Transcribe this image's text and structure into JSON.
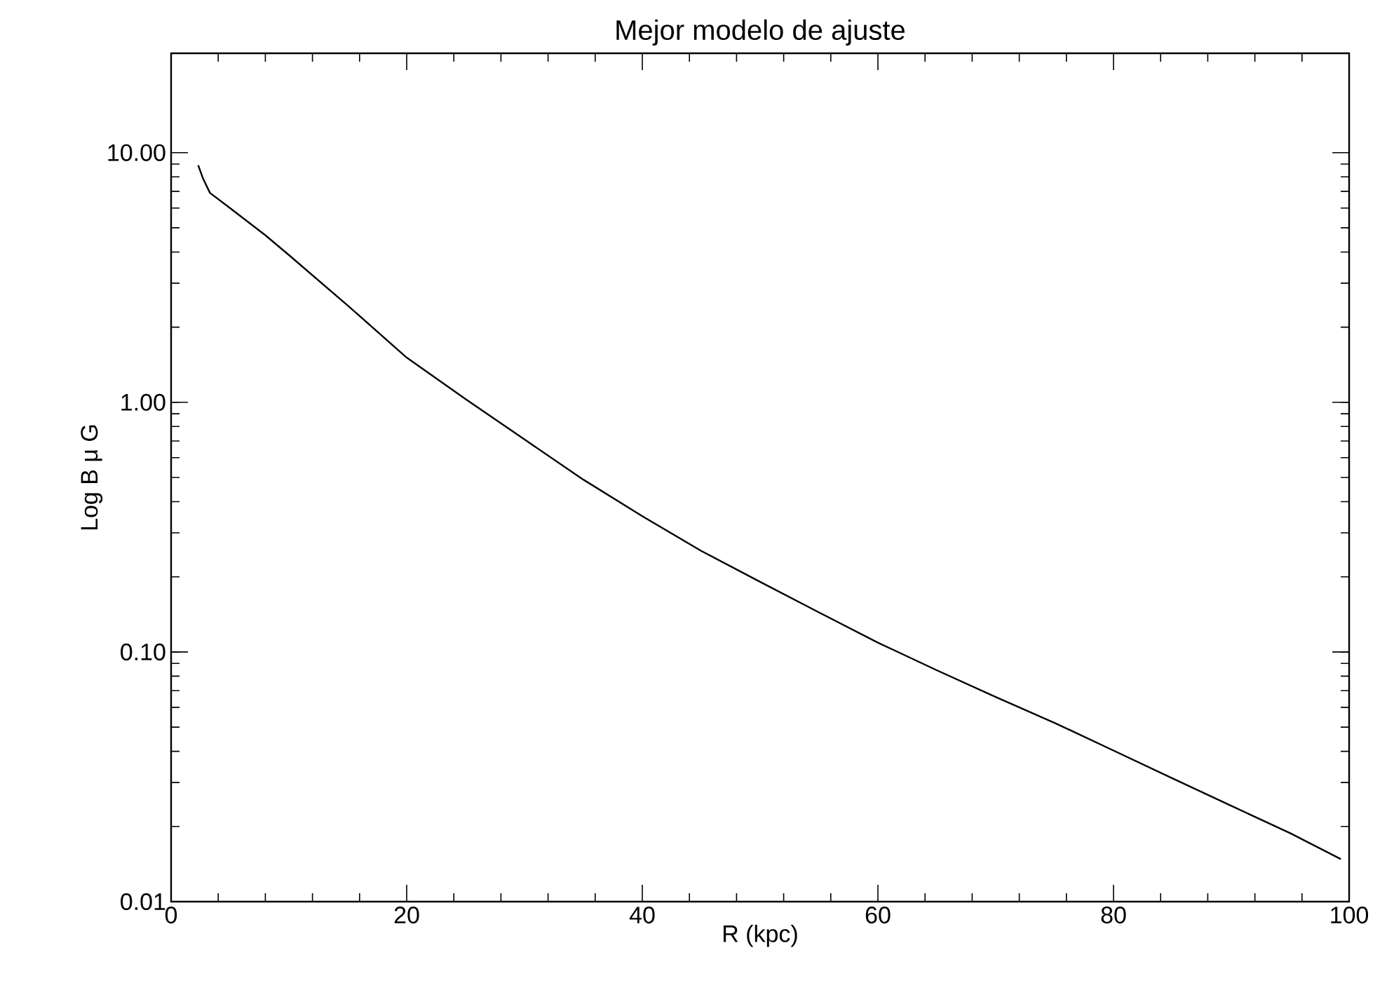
{
  "chart_data": {
    "type": "line",
    "title": "Mejor modelo de ajuste",
    "xlabel": "R (kpc)",
    "ylabel": "Log B μ G",
    "log": "y",
    "xlim": [
      0,
      100
    ],
    "ylim": [
      0.01,
      25
    ],
    "xticks": [
      0,
      20,
      40,
      60,
      80,
      100
    ],
    "yticks": [
      {
        "value": 0.01,
        "label": "0.01"
      },
      {
        "value": 0.1,
        "label": "0.10"
      },
      {
        "value": 1,
        "label": "1.00"
      },
      {
        "value": 10,
        "label": "10.00"
      }
    ],
    "marker": "none",
    "line_style": "solid",
    "color": "#000000",
    "x": [
      2.3,
      2.7,
      3.3,
      5,
      8,
      10,
      15,
      20,
      25,
      30,
      35,
      40,
      45,
      50,
      55,
      60,
      65,
      70,
      75,
      80,
      85,
      90,
      95,
      99.3
    ],
    "values": [
      8.9,
      7.9,
      6.9,
      6.0,
      4.67,
      3.89,
      2.44,
      1.51,
      1.03,
      0.71,
      0.49,
      0.35,
      0.254,
      0.191,
      0.144,
      0.109,
      0.0845,
      0.066,
      0.052,
      0.0403,
      0.0312,
      0.0242,
      0.0188,
      0.0148
    ]
  }
}
